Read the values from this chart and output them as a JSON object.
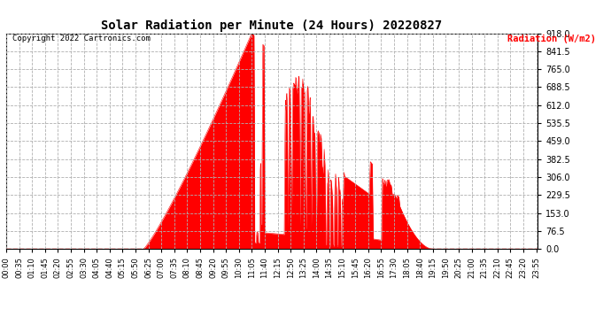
{
  "title": "Solar Radiation per Minute (24 Hours) 20220827",
  "copyright": "Copyright 2022 Cartronics.com",
  "ylabel": "Radiation (W/m2)",
  "ylabel_color": "#ff0000",
  "copyright_color": "#000000",
  "background_color": "#ffffff",
  "fill_color": "#ff0000",
  "line_color": "#ff0000",
  "grid_color": "#b0b0b0",
  "yticks": [
    0.0,
    76.5,
    153.0,
    229.5,
    306.0,
    382.5,
    459.0,
    535.5,
    612.0,
    688.5,
    765.0,
    841.5,
    918.0
  ],
  "ymax": 918.0,
  "ymin": 0.0,
  "total_minutes": 1440,
  "rise_minute": 372,
  "set_minute": 1155,
  "peak_minute": 665,
  "peak_value": 918.0,
  "tick_step": 35
}
